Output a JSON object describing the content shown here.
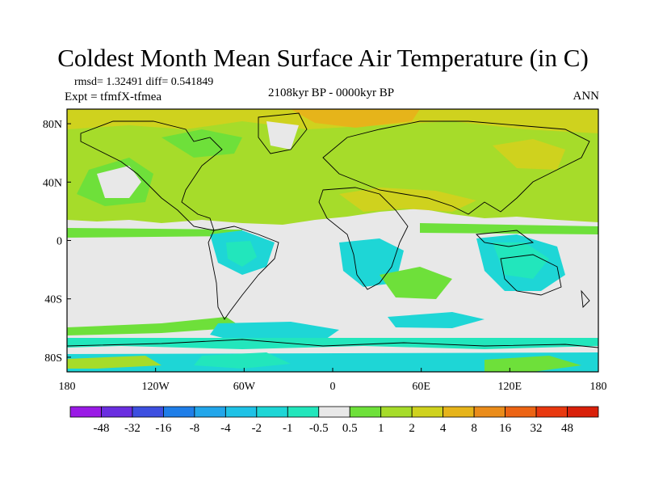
{
  "title": "Coldest Month Mean Surface Air Temperature (in C)",
  "stats": "rmsd= 1.32491  diff= 0.541849",
  "experiment": "Expt = tfmfX-tfmea",
  "period": "2108kyr BP - 0000kyr BP",
  "season": "ANN",
  "map": {
    "projection": "cylindrical equidistant",
    "lon_range": [
      -180,
      180
    ],
    "lat_range": [
      -90,
      90
    ],
    "x_ticks": [
      {
        "lon": -180,
        "label": "180"
      },
      {
        "lon": -120,
        "label": "120W"
      },
      {
        "lon": -60,
        "label": "60W"
      },
      {
        "lon": 0,
        "label": "0"
      },
      {
        "lon": 60,
        "label": "60E"
      },
      {
        "lon": 120,
        "label": "120E"
      },
      {
        "lon": 180,
        "label": "180"
      }
    ],
    "y_ticks": [
      {
        "lat": 80,
        "label": "80N"
      },
      {
        "lat": 40,
        "label": "40N"
      },
      {
        "lat": 0,
        "label": "0"
      },
      {
        "lat": -40,
        "label": "40S"
      },
      {
        "lat": -80,
        "label": "80S"
      }
    ]
  },
  "colorbar": {
    "labels": [
      "-48",
      "-32",
      "-16",
      "-8",
      "-4",
      "-2",
      "-1",
      "-0.5",
      "0.5",
      "1",
      "2",
      "4",
      "8",
      "16",
      "32",
      "48"
    ],
    "colors": [
      "#9a1ae6",
      "#6a2ee0",
      "#3d4fe0",
      "#1f7ee8",
      "#22a6ea",
      "#1fc2e6",
      "#1ed6d6",
      "#22e6bc",
      "#e8e8e8",
      "#6ee03a",
      "#a6dc2a",
      "#cfd21e",
      "#e6b41a",
      "#ea8c1a",
      "#ec6414",
      "#e8380f",
      "#d9200a"
    ]
  }
}
